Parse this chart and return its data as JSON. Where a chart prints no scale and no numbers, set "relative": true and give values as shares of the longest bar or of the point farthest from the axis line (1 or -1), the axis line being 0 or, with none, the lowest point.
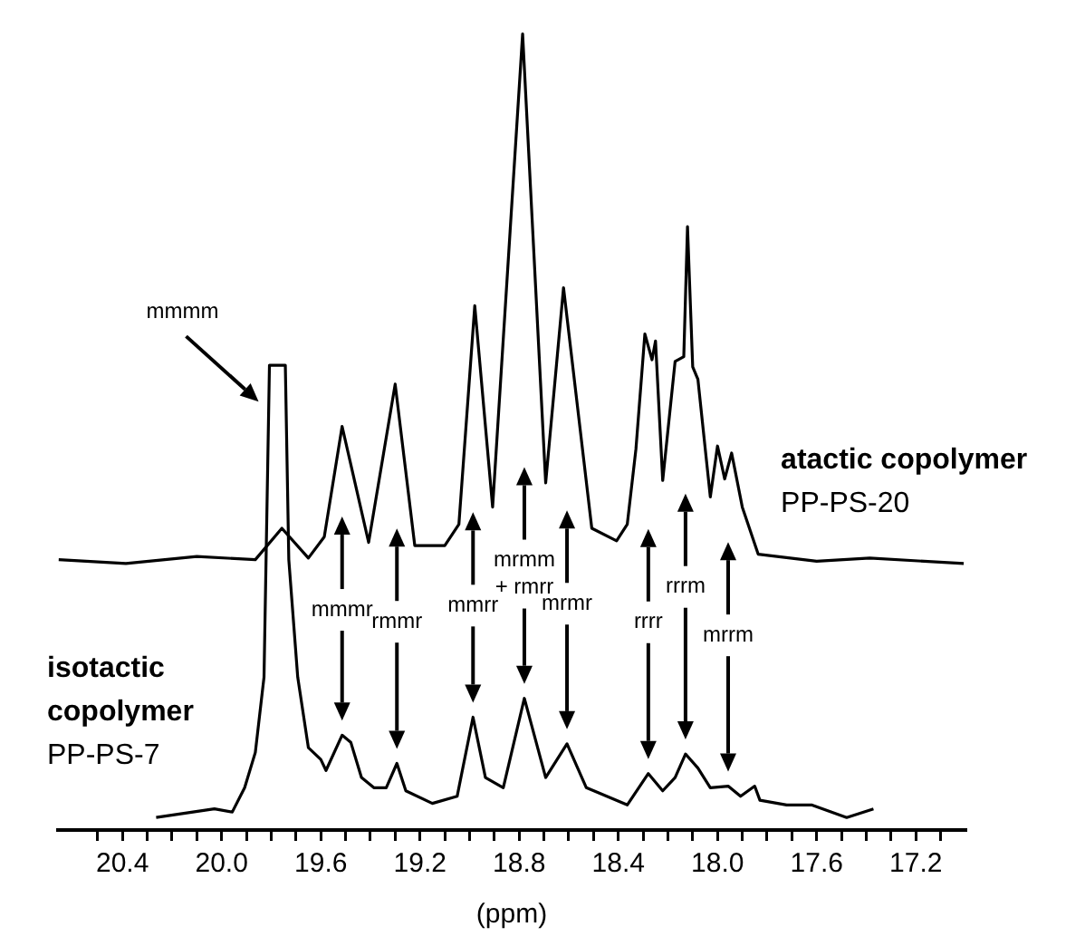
{
  "chart_data": {
    "type": "line",
    "relative": true,
    "xlabel": "(ppm)",
    "xlim": [
      20.66,
      17.0
    ],
    "xticks": [
      {
        "value": 20.5,
        "label": null
      },
      20.4,
      {
        "value": 20.3,
        "label": null
      },
      {
        "value": 20.2,
        "label": null
      },
      {
        "value": 20.1,
        "label": null
      },
      {
        "value": 20,
        "label": "20.0"
      },
      {
        "value": 19.9,
        "label": null
      },
      {
        "value": 19.8,
        "label": null
      },
      {
        "value": 19.7,
        "label": null
      },
      19.6,
      {
        "value": 19.5,
        "label": null
      },
      {
        "value": 19.4,
        "label": null
      },
      {
        "value": 19.3,
        "label": null
      },
      19.2,
      {
        "value": 19.1,
        "label": null
      },
      {
        "value": 19,
        "label": null
      },
      {
        "value": 18.9,
        "label": null
      },
      18.8,
      {
        "value": 18.7,
        "label": null
      },
      {
        "value": 18.6,
        "label": null
      },
      {
        "value": 18.5,
        "label": null
      },
      18.4,
      {
        "value": 18.3,
        "label": null
      },
      {
        "value": 18.2,
        "label": null
      },
      {
        "value": 18.1,
        "label": null
      },
      {
        "value": 18,
        "label": "18.0"
      },
      {
        "value": 17.9,
        "label": null
      },
      {
        "value": 17.8,
        "label": null
      },
      {
        "value": 17.7,
        "label": null
      },
      17.6,
      {
        "value": 17.5,
        "label": null
      },
      {
        "value": 17.4,
        "label": null
      },
      {
        "value": 17.3,
        "label": null
      },
      17.2,
      {
        "value": 17.1,
        "label": null
      }
    ],
    "series": [
      {
        "name": "atactic copolymer",
        "color": "#000000",
        "x": [
          20.657,
          20.386,
          20.1,
          19.864,
          19.757,
          19.65,
          19.586,
          19.514,
          19.407,
          19.3,
          19.221,
          19.1,
          19.043,
          18.979,
          18.907,
          18.786,
          18.693,
          18.621,
          18.507,
          18.407,
          18.364,
          18.329,
          18.293,
          18.264,
          18.25,
          18.221,
          18.171,
          18.136,
          18.121,
          18.1,
          18.079,
          18.029,
          18.0,
          17.971,
          17.943,
          17.9,
          17.836,
          17.6,
          17.386,
          17.007
        ],
        "values": [
          0.329,
          0.324,
          0.333,
          0.329,
          0.369,
          0.331,
          0.358,
          0.499,
          0.351,
          0.553,
          0.347,
          0.347,
          0.374,
          0.653,
          0.396,
          1,
          0.427,
          0.676,
          0.369,
          0.353,
          0.374,
          0.47,
          0.617,
          0.584,
          0.608,
          0.43,
          0.582,
          0.588,
          0.754,
          0.575,
          0.559,
          0.409,
          0.474,
          0.432,
          0.465,
          0.396,
          0.336,
          0.327,
          0.331,
          0.324
        ]
      },
      {
        "name": "isotactic copolymer",
        "color": "#000000",
        "x": [
          20.264,
          20.029,
          19.957,
          19.907,
          19.864,
          19.829,
          19.807,
          19.743,
          19.729,
          19.693,
          19.65,
          19.6,
          19.579,
          19.514,
          19.479,
          19.436,
          19.386,
          19.336,
          19.293,
          19.257,
          19.15,
          19.05,
          18.986,
          18.936,
          18.864,
          18.779,
          18.693,
          18.607,
          18.529,
          18.364,
          18.279,
          18.221,
          18.171,
          18.129,
          18.079,
          18.029,
          17.957,
          17.907,
          17.85,
          17.829,
          17.721,
          17.621,
          17.479,
          17.371
        ],
        "values": [
          0,
          0.011,
          0.007,
          0.038,
          0.083,
          0.179,
          0.577,
          0.577,
          0.329,
          0.179,
          0.089,
          0.074,
          0.06,
          0.105,
          0.096,
          0.051,
          0.038,
          0.038,
          0.069,
          0.034,
          0.018,
          0.027,
          0.128,
          0.051,
          0.038,
          0.152,
          0.051,
          0.094,
          0.038,
          0.016,
          0.056,
          0.034,
          0.051,
          0.081,
          0.063,
          0.038,
          0.04,
          0.027,
          0.04,
          0.022,
          0.016,
          0.016,
          0,
          0.011
        ]
      }
    ],
    "annotations": [
      "PP-PS-20",
      "PP-PS-7",
      "mmmm",
      "mmmr",
      "rmmr",
      "mmrr",
      "mrmm\n+ rmrr",
      "mrmr",
      "rrrr",
      "rrrm",
      "mrrm"
    ]
  }
}
